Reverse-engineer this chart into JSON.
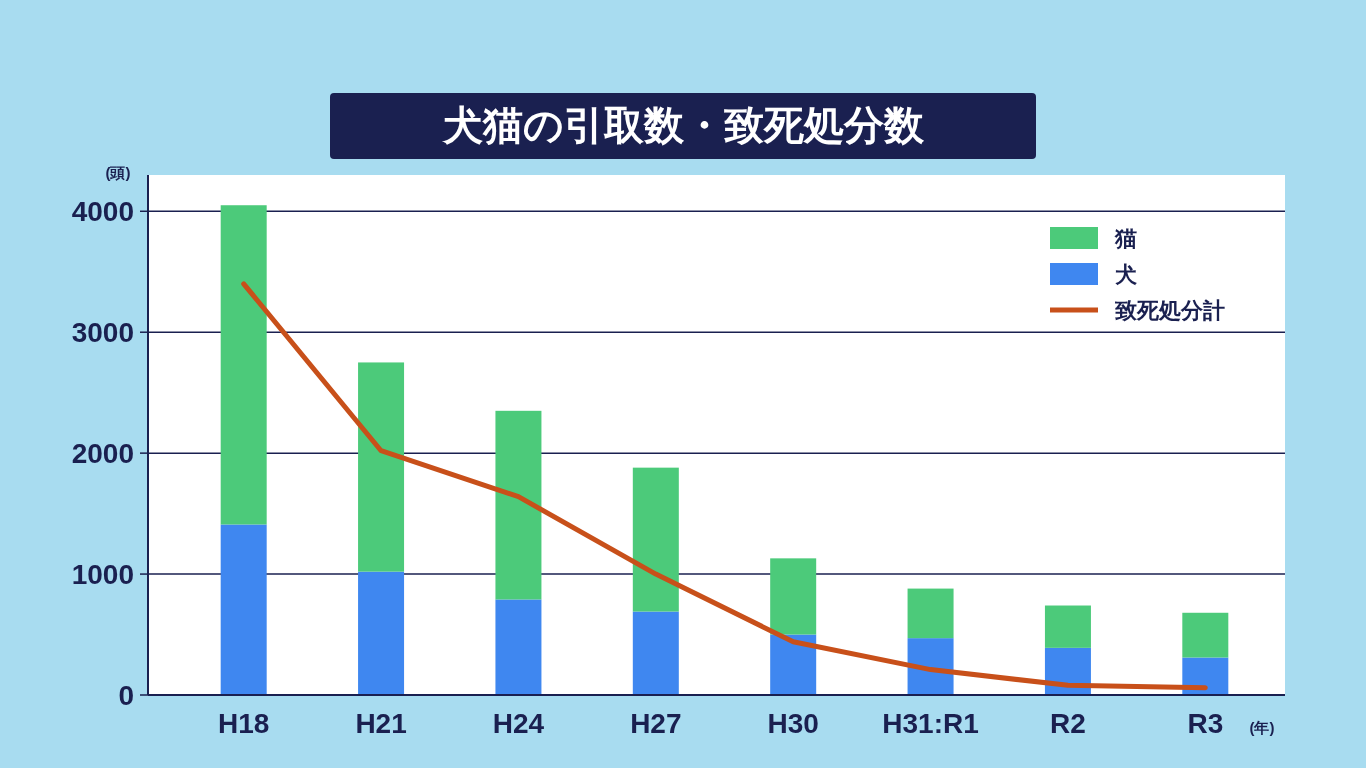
{
  "chart_data": {
    "type": "bar",
    "title": "犬猫の引取数・致死処分数",
    "ylabel": "(頭)",
    "xlabel": "(年)",
    "categories": [
      "H18",
      "H21",
      "H24",
      "H27",
      "H30",
      "H31:R1",
      "R2",
      "R3"
    ],
    "stacked": true,
    "ylim": [
      0,
      4300
    ],
    "yticks": [
      0,
      1000,
      2000,
      3000,
      4000
    ],
    "grid": "y",
    "legend": "top right",
    "series": [
      {
        "name": "犬",
        "color": "#3f87f0",
        "values": [
          1410,
          1020,
          790,
          690,
          500,
          470,
          390,
          310
        ]
      },
      {
        "name": "猫",
        "color": "#4cca7a",
        "values": [
          2640,
          1730,
          1560,
          1190,
          630,
          410,
          350,
          370
        ]
      },
      {
        "name": "致死処分計",
        "type": "line",
        "color": "#c8501a",
        "values": [
          3400,
          2020,
          1640,
          1000,
          440,
          210,
          80,
          60
        ]
      }
    ]
  }
}
